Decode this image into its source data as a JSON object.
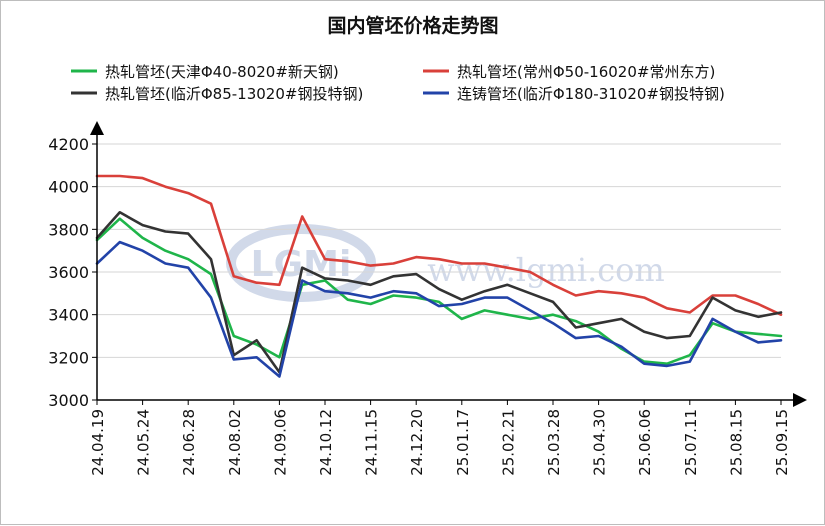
{
  "chart_data": {
    "type": "line",
    "title": "国内管坯价格走势图",
    "watermark": "www.lgmi.com",
    "watermark_logo": "LGMi",
    "xlabel": "",
    "ylabel": "",
    "ylim": [
      3000,
      4200
    ],
    "yticks": [
      3000,
      3200,
      3400,
      3600,
      3800,
      4000,
      4200
    ],
    "x_tick_labels": [
      "24.04.19",
      "24.05.24",
      "24.06.28",
      "24.08.02",
      "24.09.06",
      "24.10.12",
      "24.11.15",
      "24.12.20",
      "25.01.17",
      "25.02.21",
      "25.03.28",
      "25.04.30",
      "25.06.06",
      "25.07.11",
      "25.08.15",
      "25.09.15"
    ],
    "grid": "horizontal",
    "legend_position": "top",
    "x": [
      0,
      0.5,
      1,
      1.5,
      2,
      2.5,
      3,
      3.5,
      4,
      4.5,
      5,
      5.5,
      6,
      6.5,
      7,
      7.5,
      8,
      8.5,
      9,
      9.5,
      10,
      10.5,
      11,
      11.5,
      12,
      12.5,
      13,
      13.5,
      14,
      14.5,
      15
    ],
    "series": [
      {
        "name": "热轧管坯(天津Φ40-8020#新天钢)",
        "color": "#1fb54a",
        "values": [
          3750,
          3850,
          3760,
          3700,
          3660,
          3590,
          3300,
          3260,
          3200,
          3540,
          3560,
          3470,
          3450,
          3490,
          3480,
          3460,
          3380,
          3420,
          3400,
          3380,
          3400,
          3370,
          3320,
          3240,
          3180,
          3170,
          3210,
          3360,
          3320,
          3310,
          3300
        ]
      },
      {
        "name": "热轧管坯(常州Φ50-16020#常州东方)",
        "color": "#d9403a",
        "values": [
          4050,
          4050,
          4040,
          4000,
          3970,
          3920,
          3580,
          3550,
          3540,
          3860,
          3660,
          3650,
          3630,
          3640,
          3670,
          3660,
          3640,
          3640,
          3620,
          3600,
          3540,
          3490,
          3510,
          3500,
          3480,
          3430,
          3410,
          3490,
          3490,
          3450,
          3400
        ]
      },
      {
        "name": "热轧管坯(临沂Φ85-13020#钢投特钢)",
        "color": "#333333",
        "values": [
          3760,
          3880,
          3820,
          3790,
          3780,
          3660,
          3210,
          3280,
          3130,
          3620,
          3570,
          3560,
          3540,
          3580,
          3590,
          3520,
          3470,
          3510,
          3540,
          3500,
          3460,
          3340,
          3360,
          3380,
          3320,
          3290,
          3300,
          3480,
          3420,
          3390,
          3410
        ]
      },
      {
        "name": "连铸管坯(临沂Φ180-31020#钢投特钢)",
        "color": "#2243a8",
        "values": [
          3640,
          3740,
          3700,
          3640,
          3620,
          3480,
          3190,
          3200,
          3110,
          3560,
          3510,
          3500,
          3480,
          3510,
          3500,
          3440,
          3450,
          3480,
          3480,
          3420,
          3360,
          3290,
          3300,
          3250,
          3170,
          3160,
          3180,
          3380,
          3320,
          3270,
          3280
        ]
      }
    ]
  }
}
